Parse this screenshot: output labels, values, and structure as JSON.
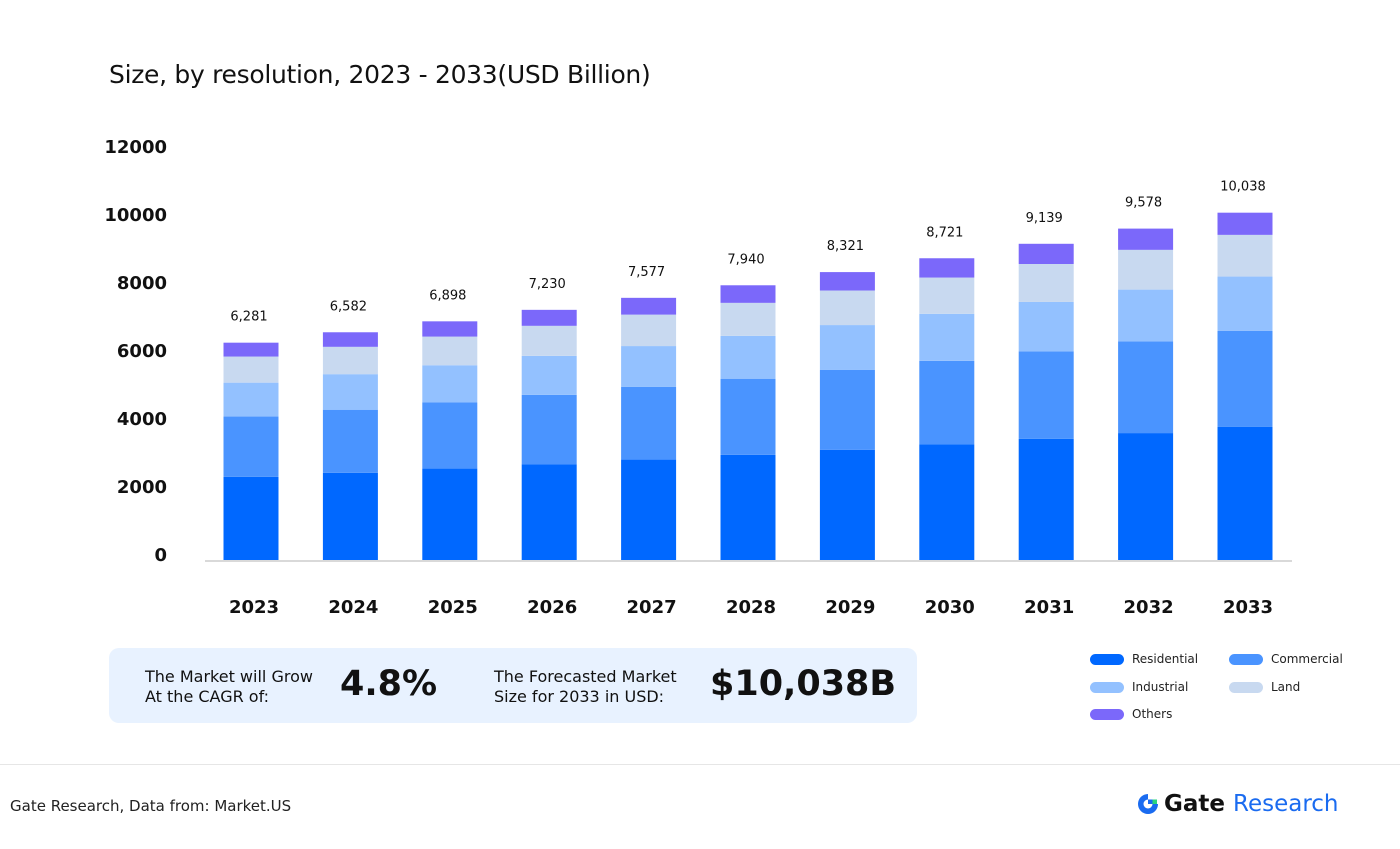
{
  "chart_data": {
    "type": "bar",
    "stacked": true,
    "title": "Size, by resolution, 2023 - 2033(USD Billion)",
    "xlabel": "",
    "ylabel": "",
    "ylim": [
      0,
      12000
    ],
    "yticks": [
      "0",
      "2000",
      "4000",
      "6000",
      "8000",
      "10000",
      "12000"
    ],
    "grid": false,
    "legend_position": "bottom-right",
    "categories": [
      "2023",
      "2024",
      "2025",
      "2026",
      "2027",
      "2028",
      "2029",
      "2030",
      "2031",
      "2032",
      "2033"
    ],
    "totals": [
      "6,281",
      "6,582",
      "6,898",
      "7,230",
      "7,577",
      "7,940",
      "8,321",
      "8,721",
      "9,139",
      "9,578",
      "10,038"
    ],
    "series": [
      {
        "name": "Residential",
        "color": "#0068FF",
        "values": [
          2406,
          2521,
          2642,
          2769,
          2902,
          3041,
          3187,
          3340,
          3500,
          3668,
          3845
        ]
      },
      {
        "name": "Commercial",
        "color": "#4A94FF",
        "values": [
          1740,
          1823,
          1911,
          2003,
          2099,
          2199,
          2305,
          2416,
          2532,
          2653,
          2781
        ]
      },
      {
        "name": "Industrial",
        "color": "#93C1FF",
        "values": [
          980,
          1027,
          1076,
          1128,
          1182,
          1239,
          1298,
          1360,
          1426,
          1494,
          1566
        ]
      },
      {
        "name": "Land",
        "color": "#C8D9F0",
        "values": [
          754,
          790,
          828,
          868,
          909,
          953,
          999,
          1047,
          1097,
          1149,
          1205
        ]
      },
      {
        "name": "Others",
        "color": "#7B68FA",
        "values": [
          401,
          421,
          441,
          462,
          485,
          508,
          532,
          558,
          584,
          614,
          641
        ]
      }
    ]
  },
  "callout": {
    "cagr_label": [
      "The Market will Grow",
      "At the CAGR of:"
    ],
    "cagr_value": "4.8%",
    "forecast_label": [
      "The Forecasted Market",
      "Size for 2033 in USD:"
    ],
    "forecast_value": "$10,038B"
  },
  "footer": {
    "source": "Gate Research, Data from: Market.US",
    "logo_gate": "Gate",
    "logo_research": "Research"
  }
}
